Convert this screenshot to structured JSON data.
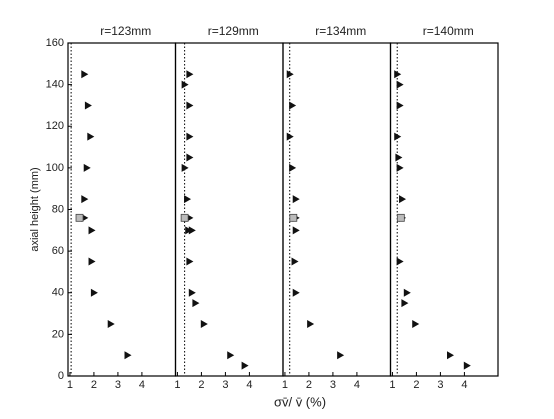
{
  "chart_data": [
    {
      "type": "scatter",
      "title": "r=123mm",
      "ylabel": "axial height (mm)",
      "xlabel": "σv̄/ v̄  (%)",
      "xlim": [
        0.92,
        5.4
      ],
      "ylim": [
        0,
        160
      ],
      "xticks": [
        1,
        2,
        3,
        4
      ],
      "yticks": [
        0,
        20,
        40,
        60,
        80,
        100,
        120,
        140,
        160
      ],
      "vline": 1.05,
      "series": [
        {
          "marker": "triangle",
          "color": "#111111",
          "x": [
            1.6,
            1.75,
            1.85,
            1.7,
            1.6,
            1.6,
            1.9,
            1.9,
            2.0,
            2.7,
            3.4
          ],
          "y": [
            145,
            130,
            115,
            100,
            85,
            76,
            70,
            55,
            40,
            25,
            10
          ]
        },
        {
          "marker": "square",
          "color": "#bbbbbb",
          "x": [
            1.4
          ],
          "y": [
            76
          ]
        }
      ]
    },
    {
      "type": "scatter",
      "title": "r=129mm",
      "xlim": [
        0.92,
        5.4
      ],
      "ylim": [
        0,
        160
      ],
      "xticks": [
        1,
        2,
        3,
        4
      ],
      "vline": 1.3,
      "series": [
        {
          "marker": "triangle",
          "color": "#111111",
          "x": [
            1.5,
            1.3,
            1.5,
            1.5,
            1.5,
            1.3,
            1.4,
            1.5,
            1.45,
            1.6,
            1.5,
            1.6,
            1.75,
            2.1,
            3.2,
            3.8
          ],
          "y": [
            145,
            140,
            130,
            115,
            105,
            100,
            85,
            76,
            70,
            70,
            55,
            40,
            35,
            25,
            10,
            5
          ]
        },
        {
          "marker": "square",
          "color": "#bbbbbb",
          "x": [
            1.3
          ],
          "y": [
            76
          ]
        }
      ]
    },
    {
      "type": "scatter",
      "title": "r=134mm",
      "xlim": [
        0.92,
        5.4
      ],
      "ylim": [
        0,
        160
      ],
      "xticks": [
        1,
        2,
        3,
        4
      ],
      "vline": 1.2,
      "series": [
        {
          "marker": "triangle",
          "color": "#111111",
          "x": [
            1.2,
            1.3,
            1.2,
            1.3,
            1.45,
            1.45,
            1.45,
            1.4,
            1.45,
            2.05,
            3.3
          ],
          "y": [
            145,
            130,
            115,
            100,
            85,
            76,
            70,
            55,
            40,
            25,
            10
          ]
        },
        {
          "marker": "square",
          "color": "#bbbbbb",
          "x": [
            1.35
          ],
          "y": [
            76
          ]
        }
      ]
    },
    {
      "type": "scatter",
      "title": "r=140mm",
      "xlim": [
        0.92,
        5.4
      ],
      "ylim": [
        0,
        160
      ],
      "xticks": [
        1,
        2,
        3,
        4
      ],
      "vline": 1.2,
      "series": [
        {
          "marker": "triangle",
          "color": "#111111",
          "x": [
            1.2,
            1.3,
            1.3,
            1.2,
            1.25,
            1.3,
            1.4,
            1.4,
            1.3,
            1.6,
            1.5,
            1.95,
            3.4,
            4.1
          ],
          "y": [
            145,
            140,
            130,
            115,
            105,
            100,
            85,
            76,
            55,
            40,
            35,
            25,
            10,
            5
          ]
        },
        {
          "marker": "square",
          "color": "#bbbbbb",
          "x": [
            1.35
          ],
          "y": [
            76
          ]
        }
      ]
    }
  ]
}
